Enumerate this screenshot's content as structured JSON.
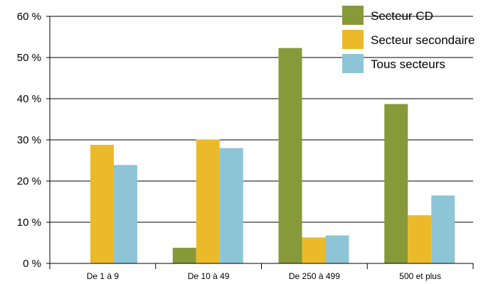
{
  "chart_data": {
    "type": "bar",
    "categories": [
      "De 1 à 9",
      "De 10 à 49",
      "De 250 à 499",
      "500 et plus"
    ],
    "series": [
      {
        "name": "Secteur CD",
        "color": "#879938",
        "values": [
          0,
          3.8,
          52.3,
          38.7
        ]
      },
      {
        "name": "Secteur secondaire",
        "color": "#EBBA2A",
        "values": [
          28.8,
          30.1,
          6.3,
          11.7
        ]
      },
      {
        "name": "Tous secteurs",
        "color": "#8DC5D7",
        "values": [
          23.9,
          28.0,
          6.8,
          16.5
        ]
      }
    ],
    "y_ticks": [
      "0 %",
      "10 %",
      "20 %",
      "30 %",
      "40 %",
      "50 %",
      "60 %"
    ],
    "ylim": [
      0,
      60
    ],
    "grid": true,
    "legend_position": "top-right",
    "title": "",
    "xlabel": "",
    "ylabel": ""
  }
}
